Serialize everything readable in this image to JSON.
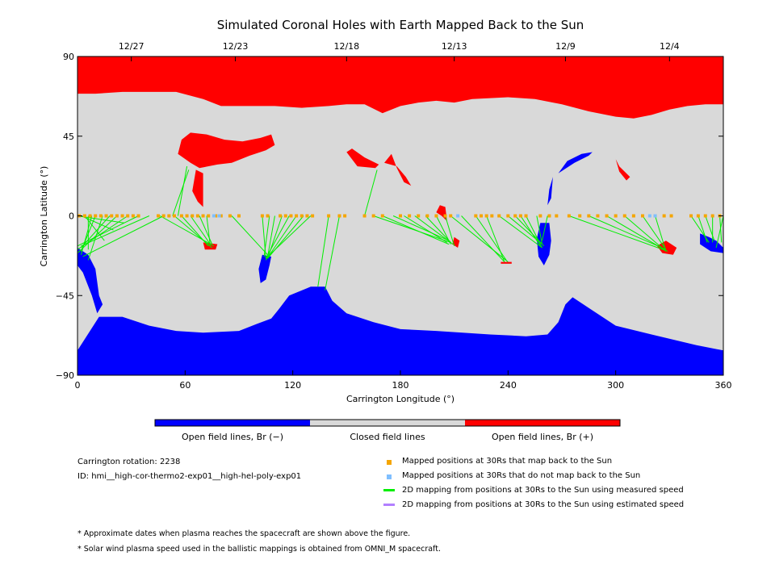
{
  "chart_data": {
    "type": "map",
    "title": "Simulated Coronal Holes with Earth Mapped Back to the Sun",
    "xlabel": "Carrington Longitude (°)",
    "ylabel": "Carrington Latitude (°)",
    "xlim": [
      0,
      360
    ],
    "ylim": [
      -90,
      90
    ],
    "xticks": [
      0,
      60,
      120,
      180,
      240,
      300,
      360
    ],
    "xtick_labels": [
      "0",
      "60",
      "120",
      "180",
      "240",
      "300",
      "360"
    ],
    "yticks": [
      90,
      45,
      0,
      -45,
      -90
    ],
    "ytick_labels": [
      "90",
      "45",
      "0",
      "−45",
      "−90"
    ],
    "top_axis_dates": [
      {
        "lon": 30,
        "label": "12/27"
      },
      {
        "lon": 88,
        "label": "12/23"
      },
      {
        "lon": 150,
        "label": "12/18"
      },
      {
        "lon": 210,
        "label": "12/13"
      },
      {
        "lon": 272,
        "label": "12/9"
      },
      {
        "lon": 330,
        "label": "12/4"
      }
    ],
    "colors": {
      "open_negative": "#0000ff",
      "closed": "#d9d9d9",
      "open_positive": "#ff0000",
      "mapped": "#f5a500",
      "unmapped": "#7fbfff",
      "measured_line": "#00ee00",
      "estimated_line": "#b27fff"
    },
    "north_polar_hole_boundary": [
      [
        0,
        69
      ],
      [
        10,
        69
      ],
      [
        25,
        70
      ],
      [
        40,
        70
      ],
      [
        55,
        70
      ],
      [
        70,
        66
      ],
      [
        80,
        62
      ],
      [
        90,
        62
      ],
      [
        110,
        62
      ],
      [
        125,
        61
      ],
      [
        140,
        62
      ],
      [
        150,
        63
      ],
      [
        160,
        63
      ],
      [
        170,
        58
      ],
      [
        180,
        62
      ],
      [
        190,
        64
      ],
      [
        200,
        65
      ],
      [
        210,
        64
      ],
      [
        220,
        66
      ],
      [
        240,
        67
      ],
      [
        255,
        66
      ],
      [
        270,
        63
      ],
      [
        285,
        59
      ],
      [
        300,
        56
      ],
      [
        310,
        55
      ],
      [
        320,
        57
      ],
      [
        330,
        60
      ],
      [
        340,
        62
      ],
      [
        350,
        63
      ],
      [
        360,
        63
      ]
    ],
    "south_polar_hole_boundary": [
      [
        0,
        -76
      ],
      [
        12,
        -57
      ],
      [
        25,
        -57
      ],
      [
        40,
        -62
      ],
      [
        55,
        -65
      ],
      [
        70,
        -66
      ],
      [
        90,
        -65
      ],
      [
        100,
        -61
      ],
      [
        108,
        -58
      ],
      [
        112,
        -53
      ],
      [
        118,
        -45
      ],
      [
        130,
        -40
      ],
      [
        138,
        -40
      ],
      [
        142,
        -48
      ],
      [
        150,
        -55
      ],
      [
        165,
        -60
      ],
      [
        180,
        -64
      ],
      [
        200,
        -65
      ],
      [
        230,
        -67
      ],
      [
        250,
        -68
      ],
      [
        262,
        -67
      ],
      [
        268,
        -60
      ],
      [
        272,
        -50
      ],
      [
        276,
        -46
      ],
      [
        285,
        -52
      ],
      [
        300,
        -62
      ],
      [
        320,
        -67
      ],
      [
        345,
        -73
      ],
      [
        360,
        -76
      ]
    ],
    "ch_patches": [
      {
        "polarity": "positive",
        "points": [
          [
            56,
            35
          ],
          [
            63,
            30
          ],
          [
            68,
            27
          ],
          [
            78,
            29
          ],
          [
            86,
            30
          ],
          [
            96,
            34
          ],
          [
            105,
            37
          ],
          [
            110,
            40
          ],
          [
            108,
            46
          ],
          [
            102,
            44
          ],
          [
            92,
            42
          ],
          [
            82,
            43
          ],
          [
            72,
            46
          ],
          [
            63,
            47
          ],
          [
            58,
            43
          ]
        ]
      },
      {
        "polarity": "positive",
        "points": [
          [
            66,
            26
          ],
          [
            70,
            24
          ],
          [
            70,
            5
          ],
          [
            67,
            8
          ],
          [
            64,
            14
          ]
        ]
      },
      {
        "polarity": "positive",
        "points": [
          [
            150,
            36
          ],
          [
            156,
            28
          ],
          [
            166,
            27
          ],
          [
            168,
            29
          ],
          [
            160,
            33
          ],
          [
            153,
            38
          ]
        ]
      },
      {
        "polarity": "positive",
        "points": [
          [
            171,
            30
          ],
          [
            175,
            35
          ],
          [
            178,
            27
          ],
          [
            182,
            19
          ],
          [
            186,
            17
          ],
          [
            183,
            22
          ],
          [
            178,
            28
          ]
        ]
      },
      {
        "polarity": "positive",
        "points": [
          [
            300,
            32
          ],
          [
            302,
            28
          ],
          [
            308,
            22
          ],
          [
            306,
            20
          ],
          [
            302,
            25
          ]
        ]
      },
      {
        "polarity": "positive",
        "points": [
          [
            200,
            2
          ],
          [
            202,
            6
          ],
          [
            205,
            5
          ],
          [
            206,
            -3
          ],
          [
            203,
            0
          ]
        ]
      },
      {
        "polarity": "positive",
        "points": [
          [
            328,
            -14
          ],
          [
            334,
            -18
          ],
          [
            332,
            -22
          ],
          [
            326,
            -21
          ],
          [
            323,
            -17
          ]
        ]
      },
      {
        "polarity": "positive",
        "points": [
          [
            70,
            -15
          ],
          [
            78,
            -16
          ],
          [
            77,
            -19
          ],
          [
            71,
            -19
          ]
        ]
      },
      {
        "polarity": "positive",
        "points": [
          [
            210,
            -12
          ],
          [
            213,
            -14
          ],
          [
            212,
            -18
          ],
          [
            209,
            -16
          ]
        ]
      },
      {
        "polarity": "positive",
        "points": [
          [
            236,
            -26
          ],
          [
            242,
            -26
          ],
          [
            242,
            -27
          ],
          [
            236,
            -27
          ]
        ]
      },
      {
        "polarity": "negative",
        "points": [
          [
            258,
            -4
          ],
          [
            263,
            -4
          ],
          [
            264,
            -14
          ],
          [
            263,
            -22
          ],
          [
            260,
            -28
          ],
          [
            257,
            -23
          ],
          [
            256,
            -13
          ]
        ]
      },
      {
        "polarity": "negative",
        "points": [
          [
            263,
            15
          ],
          [
            265,
            22
          ],
          [
            264,
            10
          ],
          [
            262,
            6
          ]
        ]
      },
      {
        "polarity": "negative",
        "points": [
          [
            268,
            24
          ],
          [
            277,
            30
          ],
          [
            285,
            34
          ],
          [
            287,
            36
          ],
          [
            281,
            35
          ],
          [
            273,
            31
          ]
        ]
      },
      {
        "polarity": "negative",
        "points": [
          [
            103,
            -22
          ],
          [
            108,
            -23
          ],
          [
            107,
            -28
          ],
          [
            105,
            -36
          ],
          [
            102,
            -38
          ],
          [
            101,
            -30
          ]
        ]
      },
      {
        "polarity": "negative",
        "points": [
          [
            0,
            -18
          ],
          [
            6,
            -22
          ],
          [
            10,
            -30
          ],
          [
            12,
            -45
          ],
          [
            14,
            -50
          ],
          [
            11,
            -55
          ],
          [
            8,
            -45
          ],
          [
            3,
            -32
          ],
          [
            0,
            -28
          ]
        ]
      },
      {
        "polarity": "negative",
        "points": [
          [
            347,
            -10
          ],
          [
            352,
            -12
          ],
          [
            356,
            -14
          ],
          [
            360,
            -18
          ],
          [
            360,
            -21
          ],
          [
            353,
            -20
          ],
          [
            347,
            -16
          ]
        ]
      }
    ],
    "mapped_longitudes": [
      1,
      4,
      7,
      10,
      13,
      16,
      19,
      22,
      25,
      28,
      31,
      34,
      45,
      48,
      51,
      54,
      58,
      61,
      64,
      67,
      70,
      73,
      77,
      80,
      85,
      90,
      103,
      106,
      113,
      116,
      119,
      122,
      125,
      128,
      131,
      140,
      146,
      149,
      160,
      165,
      170,
      180,
      185,
      190,
      195,
      200,
      205,
      208,
      222,
      225,
      228,
      231,
      235,
      240,
      244,
      247,
      250,
      258,
      263,
      267,
      274,
      280,
      285,
      290,
      295,
      300,
      305,
      310,
      315,
      322,
      327,
      331,
      342,
      346,
      350,
      354,
      358
    ],
    "unmapped_longitudes": [
      76,
      79,
      212,
      319,
      322
    ],
    "measured_mapping_lines": [
      [
        [
          0,
          0
        ],
        [
          26,
          -4
        ]
      ],
      [
        [
          2,
          0
        ],
        [
          20,
          -8
        ]
      ],
      [
        [
          4,
          0
        ],
        [
          15,
          -14
        ]
      ],
      [
        [
          6,
          0
        ],
        [
          6,
          -19
        ]
      ],
      [
        [
          8,
          0
        ],
        [
          2,
          -22
        ]
      ],
      [
        [
          10,
          0
        ],
        [
          2,
          -20
        ]
      ],
      [
        [
          14,
          0
        ],
        [
          6,
          -25
        ]
      ],
      [
        [
          18,
          0
        ],
        [
          2,
          -18
        ]
      ],
      [
        [
          22,
          0
        ],
        [
          0,
          -21
        ]
      ],
      [
        [
          28,
          0
        ],
        [
          0,
          -19
        ]
      ],
      [
        [
          34,
          0
        ],
        [
          0,
          -17
        ]
      ],
      [
        [
          40,
          0
        ],
        [
          2,
          -17
        ]
      ],
      [
        [
          48,
          0
        ],
        [
          3,
          -23
        ]
      ],
      [
        [
          53,
          0
        ],
        [
          62,
          26
        ]
      ],
      [
        [
          56,
          0
        ],
        [
          61,
          28
        ]
      ],
      [
        [
          46,
          0
        ],
        [
          76,
          -17
        ]
      ],
      [
        [
          54,
          0
        ],
        [
          75,
          -18
        ]
      ],
      [
        [
          58,
          0
        ],
        [
          73,
          -17
        ]
      ],
      [
        [
          63,
          0
        ],
        [
          74,
          -16
        ]
      ],
      [
        [
          68,
          0
        ],
        [
          75,
          -16
        ]
      ],
      [
        [
          72,
          0
        ],
        [
          74,
          -17
        ]
      ],
      [
        [
          86,
          0
        ],
        [
          106,
          -22
        ]
      ],
      [
        [
          103,
          0
        ],
        [
          105,
          -24
        ]
      ],
      [
        [
          107,
          0
        ],
        [
          104,
          -23
        ]
      ],
      [
        [
          110,
          0
        ],
        [
          106,
          -23
        ]
      ],
      [
        [
          114,
          0
        ],
        [
          106,
          -24
        ]
      ],
      [
        [
          118,
          0
        ],
        [
          105,
          -24
        ]
      ],
      [
        [
          122,
          0
        ],
        [
          105,
          -25
        ]
      ],
      [
        [
          126,
          0
        ],
        [
          106,
          -24
        ]
      ],
      [
        [
          130,
          0
        ],
        [
          105,
          -24
        ]
      ],
      [
        [
          140,
          0
        ],
        [
          134,
          -40
        ]
      ],
      [
        [
          146,
          0
        ],
        [
          138,
          -42
        ]
      ],
      [
        [
          160,
          0
        ],
        [
          167,
          26
        ]
      ],
      [
        [
          165,
          0
        ],
        [
          208,
          -15
        ]
      ],
      [
        [
          170,
          0
        ],
        [
          207,
          -16
        ]
      ],
      [
        [
          176,
          0
        ],
        [
          207,
          -14
        ]
      ],
      [
        [
          182,
          0
        ],
        [
          206,
          -15
        ]
      ],
      [
        [
          188,
          0
        ],
        [
          208,
          -15
        ]
      ],
      [
        [
          194,
          0
        ],
        [
          209,
          -16
        ]
      ],
      [
        [
          200,
          0
        ],
        [
          208,
          -16
        ]
      ],
      [
        [
          205,
          0
        ],
        [
          210,
          -17
        ]
      ],
      [
        [
          208,
          0
        ],
        [
          240,
          -26
        ]
      ],
      [
        [
          214,
          0
        ],
        [
          238,
          -26
        ]
      ],
      [
        [
          222,
          0
        ],
        [
          239,
          -25
        ]
      ],
      [
        [
          228,
          0
        ],
        [
          238,
          -26
        ]
      ],
      [
        [
          235,
          0
        ],
        [
          259,
          -18
        ]
      ],
      [
        [
          240,
          0
        ],
        [
          259,
          -16
        ]
      ],
      [
        [
          244,
          0
        ],
        [
          260,
          -17
        ]
      ],
      [
        [
          247,
          0
        ],
        [
          258,
          -17
        ]
      ],
      [
        [
          250,
          0
        ],
        [
          259,
          -18
        ]
      ],
      [
        [
          256,
          0
        ],
        [
          259,
          -16
        ]
      ],
      [
        [
          262,
          0
        ],
        [
          259,
          -14
        ]
      ],
      [
        [
          274,
          0
        ],
        [
          329,
          -20
        ]
      ],
      [
        [
          285,
          0
        ],
        [
          328,
          -19
        ]
      ],
      [
        [
          295,
          0
        ],
        [
          327,
          -19
        ]
      ],
      [
        [
          305,
          0
        ],
        [
          328,
          -20
        ]
      ],
      [
        [
          315,
          0
        ],
        [
          328,
          -19
        ]
      ],
      [
        [
          322,
          0
        ],
        [
          328,
          -20
        ]
      ],
      [
        [
          342,
          0
        ],
        [
          352,
          -15
        ]
      ],
      [
        [
          346,
          0
        ],
        [
          351,
          -15
        ]
      ],
      [
        [
          350,
          0
        ],
        [
          355,
          -14
        ]
      ],
      [
        [
          354,
          0
        ],
        [
          354,
          -15
        ]
      ],
      [
        [
          358,
          0
        ],
        [
          359,
          -15
        ]
      ],
      [
        [
          360,
          0
        ],
        [
          356,
          -18
        ]
      ]
    ],
    "estimated_mapping_lines": []
  },
  "colorbar": {
    "labels": [
      "Open field lines, Br (−)",
      "Closed field lines",
      "Open field lines, Br (+)"
    ]
  },
  "info": {
    "rotation": "Carrington rotation: 2238",
    "id": "ID: hmi__high-cor-thermo2-exp01__high-hel-poly-exp01"
  },
  "legend": {
    "mapped": "Mapped positions at 30Rs that map back to the Sun",
    "unmapped": "Mapped positions at 30Rs that do not map back to the Sun",
    "measured": "2D mapping from positions at 30Rs to the Sun using measured speed",
    "estimated": "2D mapping from positions at 30Rs to the Sun using estimated speed"
  },
  "notes": {
    "note1": "* Approximate dates when plasma reaches the spacecraft are shown above the figure.",
    "note2": "* Solar wind plasma speed used in the ballistic mappings is obtained from OMNI_M spacecraft."
  }
}
